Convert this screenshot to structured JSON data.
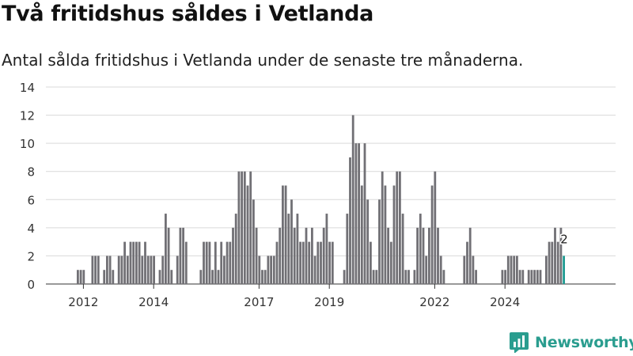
{
  "header": {
    "title": "Två fritidshus såldes i Vetlanda",
    "subtitle": "Antal sålda fritidshus i Vetlanda under de senaste tre månaderna."
  },
  "footer": {
    "brand": "Newsworthy"
  },
  "colors": {
    "bar": "#717075",
    "highlight": "#1f9b92",
    "brand": "#2a9d8f",
    "grid": "#d9d9d9"
  },
  "chart_data": {
    "type": "bar",
    "title": "Två fritidshus såldes i Vetlanda",
    "subtitle": "Antal sålda fritidshus i Vetlanda under de senaste tre månaderna.",
    "xlabel": "",
    "ylabel": "",
    "ylim": [
      0,
      14
    ],
    "yticks": [
      0,
      2,
      4,
      6,
      8,
      10,
      12,
      14
    ],
    "x_start": "2011-01",
    "x_step": "month",
    "xticks": [
      {
        "label": "2012",
        "x": "2012-01"
      },
      {
        "label": "2014",
        "x": "2014-01"
      },
      {
        "label": "2017",
        "x": "2017-01"
      },
      {
        "label": "2019",
        "x": "2019-01"
      },
      {
        "label": "2022",
        "x": "2022-01"
      },
      {
        "label": "2024",
        "x": "2024-01"
      }
    ],
    "grid": true,
    "legend": "none",
    "values": [
      0,
      0,
      0,
      0,
      0,
      0,
      0,
      0,
      0,
      0,
      1,
      1,
      1,
      0,
      0,
      2,
      2,
      2,
      0,
      1,
      2,
      2,
      1,
      0,
      2,
      2,
      3,
      2,
      3,
      3,
      3,
      3,
      2,
      3,
      2,
      2,
      2,
      0,
      1,
      2,
      5,
      4,
      1,
      0,
      2,
      4,
      4,
      3,
      0,
      0,
      0,
      0,
      1,
      3,
      3,
      3,
      1,
      3,
      1,
      3,
      2,
      3,
      3,
      4,
      5,
      8,
      8,
      8,
      7,
      8,
      6,
      4,
      2,
      1,
      1,
      2,
      2,
      2,
      3,
      4,
      7,
      7,
      5,
      6,
      4,
      5,
      3,
      3,
      4,
      3,
      4,
      2,
      3,
      3,
      4,
      5,
      3,
      3,
      0,
      0,
      0,
      1,
      5,
      9,
      12,
      10,
      10,
      7,
      10,
      6,
      3,
      1,
      1,
      6,
      8,
      7,
      4,
      3,
      7,
      8,
      8,
      5,
      1,
      1,
      0,
      1,
      4,
      5,
      4,
      2,
      4,
      7,
      8,
      4,
      2,
      1,
      0,
      0,
      0,
      0,
      0,
      0,
      2,
      3,
      4,
      2,
      1,
      0,
      0,
      0,
      0,
      0,
      0,
      0,
      0,
      1,
      1,
      2,
      2,
      2,
      2,
      1,
      1,
      0,
      1,
      1,
      1,
      1,
      1,
      0,
      2,
      3,
      3,
      4,
      3,
      4,
      2
    ],
    "last_value": 2,
    "highlight_last": true
  }
}
